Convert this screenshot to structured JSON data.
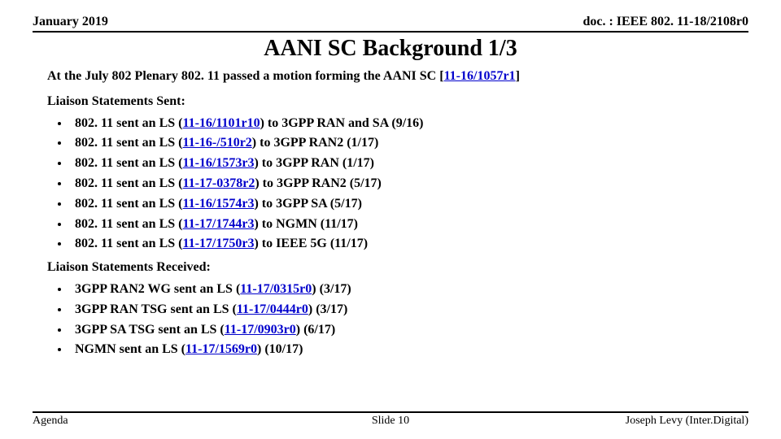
{
  "header": {
    "date": "January 2019",
    "doc": "doc. : IEEE 802. 11-18/2108r0"
  },
  "title": "AANI SC Background 1/3",
  "intro": {
    "prefix": "At the July 802 Plenary 802. 11 passed a motion forming the AANI SC [",
    "link": "11-16/1057r1",
    "suffix": "]"
  },
  "sent_label": "Liaison Statements Sent:",
  "sent": [
    {
      "prefix": "802. 11 sent an LS (",
      "link": "11-16/1101r10",
      "suffix": ") to 3GPP RAN and SA (9/16)"
    },
    {
      "prefix": "802. 11 sent an LS (",
      "link": "11-16-/510r2",
      "suffix": ") to 3GPP RAN2 (1/17)"
    },
    {
      "prefix": "802. 11 sent an LS (",
      "link": "11-16/1573r3",
      "suffix": ") to 3GPP RAN (1/17)"
    },
    {
      "prefix": "802. 11 sent an LS (",
      "link": "11-17-0378r2",
      "suffix": ") to 3GPP RAN2 (5/17)"
    },
    {
      "prefix": "802. 11 sent an LS (",
      "link": "11-16/1574r3",
      "suffix": ") to 3GPP SA (5/17)"
    },
    {
      "prefix": "802. 11 sent an LS (",
      "link": "11-17/1744r3",
      "suffix": ") to NGMN (11/17)"
    },
    {
      "prefix": "802. 11 sent an LS (",
      "link": "11-17/1750r3",
      "suffix": ") to IEEE 5G (11/17)"
    }
  ],
  "recv_label": "Liaison Statements Received:",
  "recv": [
    {
      "prefix": "3GPP RAN2 WG sent an LS (",
      "link": "11-17/0315r0",
      "suffix": ") (3/17)"
    },
    {
      "prefix": "3GPP RAN TSG sent an LS (",
      "link": "11-17/0444r0",
      "suffix": ") (3/17)"
    },
    {
      "prefix": "3GPP SA TSG sent an LS (",
      "link": "11-17/0903r0",
      "suffix": ") (6/17)"
    },
    {
      "prefix": "NGMN sent an LS (",
      "link": "11-17/1569r0",
      "suffix": ") (10/17)"
    }
  ],
  "footer": {
    "left": "Agenda",
    "center": "Slide 10",
    "right": "Joseph Levy (Inter.Digital)"
  }
}
